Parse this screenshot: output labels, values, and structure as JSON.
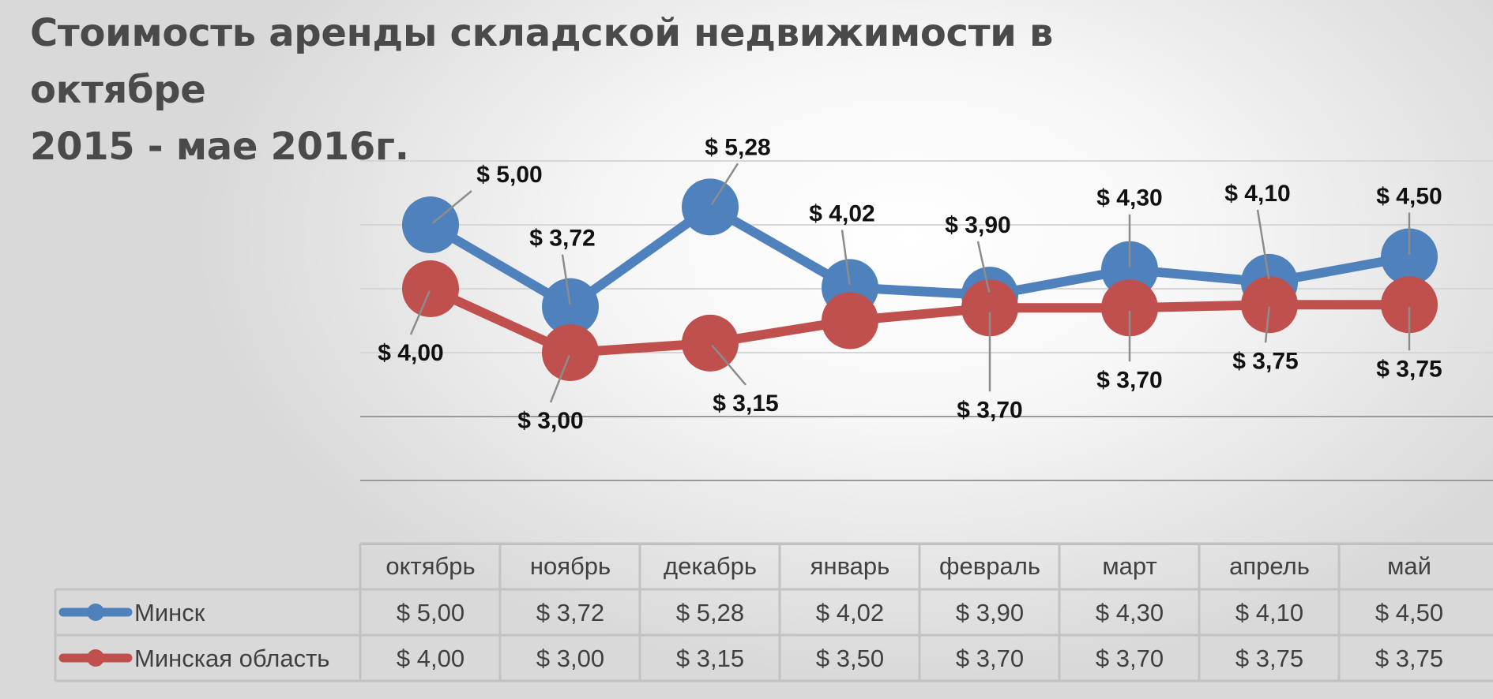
{
  "chart_data": {
    "type": "line",
    "title_lines": [
      "Стоимость аренды складской недвижимости в октябре",
      "2015 - мае 2016г."
    ],
    "categories": [
      "октябрь",
      "ноябрь",
      "декабрь",
      "январь",
      "февраль",
      "март",
      "апрель",
      "май"
    ],
    "series": [
      {
        "name": "Минск",
        "color": "#4f81bd",
        "values": [
          5.0,
          3.72,
          5.28,
          4.02,
          3.9,
          4.3,
          4.1,
          4.5
        ],
        "labels": [
          "$ 5,00",
          "$ 3,72",
          "$ 5,28",
          "$ 4,02",
          "$ 3,90",
          "$ 4,30",
          "$ 4,10",
          "$ 4,50"
        ]
      },
      {
        "name": "Минская область",
        "color": "#c0504d",
        "values": [
          4.0,
          3.0,
          3.15,
          3.5,
          3.7,
          3.7,
          3.75,
          3.75
        ],
        "labels": [
          "$ 4,00",
          "$ 3,00",
          "$ 3,15",
          "$ 3,50",
          "$ 3,70",
          "$ 3,70",
          "$ 3,75",
          "$ 3,75"
        ]
      }
    ],
    "ylim": [
      0,
      6
    ],
    "grid": true,
    "legend": "data-table"
  }
}
